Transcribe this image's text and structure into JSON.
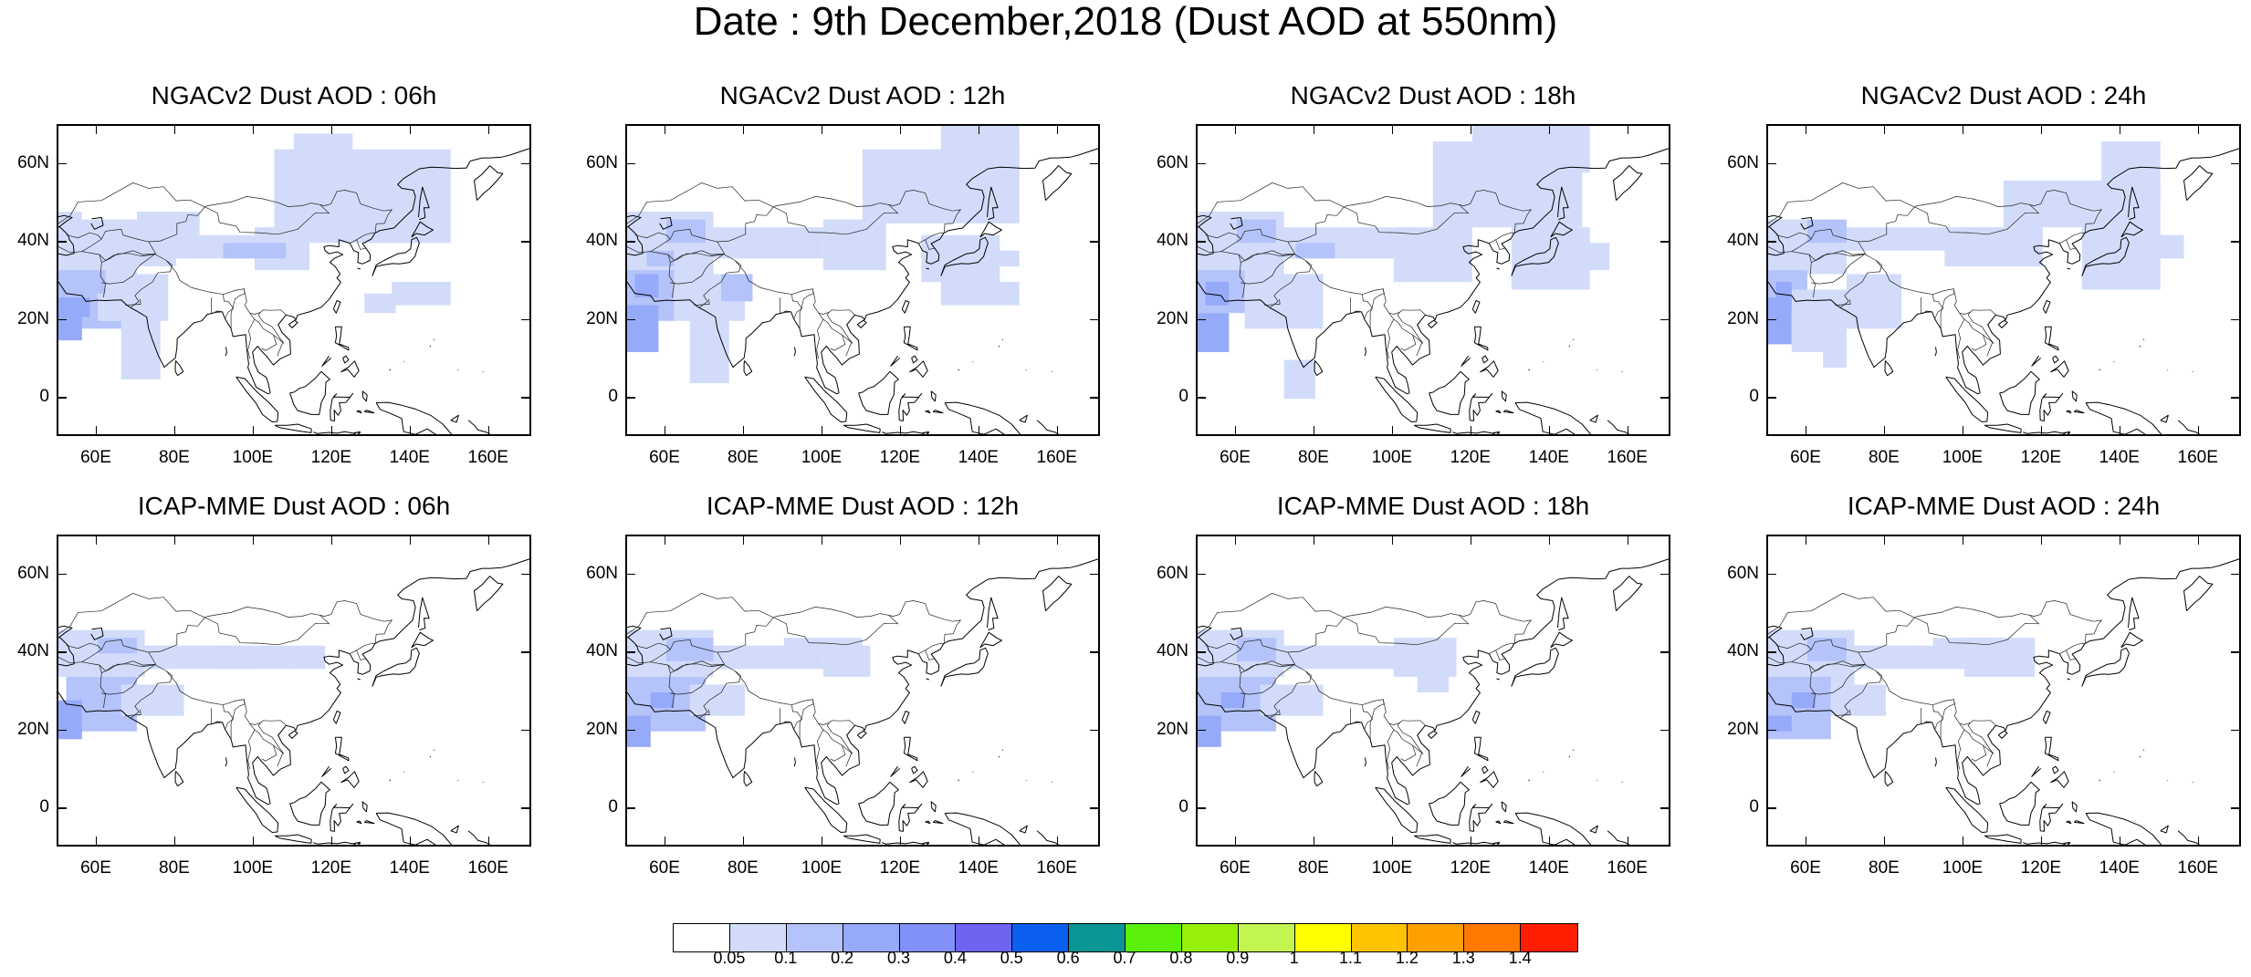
{
  "title": "Date : 9th December,2018 (Dust AOD at 550nm)",
  "axis_labels": {
    "y": [
      "60N",
      "40N",
      "20N",
      "0"
    ],
    "x": [
      "60E",
      "80E",
      "100E",
      "120E",
      "140E",
      "160E"
    ]
  },
  "panels": [
    {
      "title": "NGACv2 Dust AOD : 06h",
      "model": "NGACv2",
      "hour": "06h"
    },
    {
      "title": "NGACv2 Dust AOD : 12h",
      "model": "NGACv2",
      "hour": "12h"
    },
    {
      "title": "NGACv2 Dust AOD : 18h",
      "model": "NGACv2",
      "hour": "18h"
    },
    {
      "title": "NGACv2 Dust AOD : 24h",
      "model": "NGACv2",
      "hour": "24h"
    },
    {
      "title": "ICAP-MME Dust AOD : 06h",
      "model": "ICAP-MME",
      "hour": "06h"
    },
    {
      "title": "ICAP-MME Dust AOD : 12h",
      "model": "ICAP-MME",
      "hour": "12h"
    },
    {
      "title": "ICAP-MME Dust AOD : 18h",
      "model": "ICAP-MME",
      "hour": "18h"
    },
    {
      "title": "ICAP-MME Dust AOD : 24h",
      "model": "ICAP-MME",
      "hour": "24h"
    }
  ],
  "colorbar": {
    "labels": [
      "0.05",
      "0.1",
      "0.2",
      "0.3",
      "0.4",
      "0.5",
      "0.6",
      "0.7",
      "0.8",
      "0.9",
      "1",
      "1.1",
      "1.2",
      "1.3",
      "1.4"
    ],
    "colors": [
      "#ffffff",
      "#d2dcfa",
      "#b4c3fa",
      "#96aafa",
      "#8291fa",
      "#6e64f0",
      "#0a5ff0",
      "#0a9696",
      "#5af00a",
      "#96f00a",
      "#c3f550",
      "#ffff00",
      "#ffc300",
      "#ffa000",
      "#ff7800",
      "#ff1e00"
    ]
  }
}
